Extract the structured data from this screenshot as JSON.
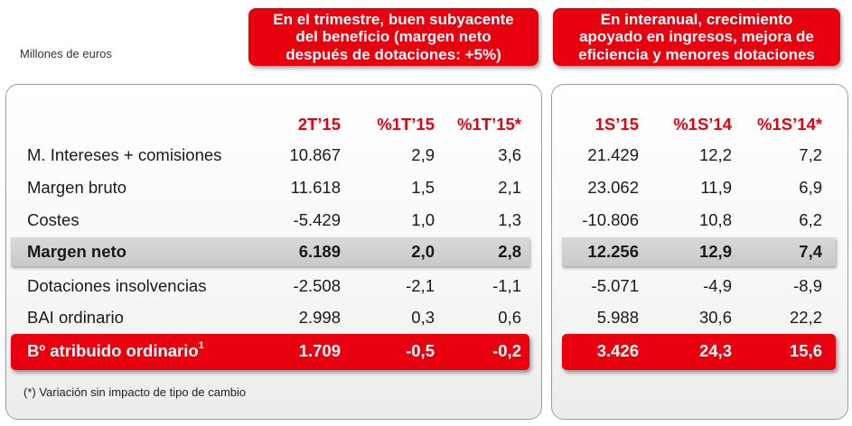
{
  "units": "Millones de euros",
  "callouts": {
    "left": [
      "En el trimestre, buen subyacente",
      "del beneficio (margen neto",
      "después de dotaciones: +5%)"
    ],
    "right": [
      "En interanual, crecimiento",
      "apoyado en ingresos, mejora de",
      "eficiencia y menores dotaciones"
    ]
  },
  "headers": {
    "q": "2T’15",
    "q_vs1": "%1T’15",
    "q_vs2": "%1T’15*",
    "s": "1S’15",
    "s_vs1": "%1S’14",
    "s_vs2": "%1S’14*"
  },
  "rows": [
    {
      "label": "M. Intereses + comisiones",
      "q": "10.867",
      "q_vs1": "2,9",
      "q_vs2": "3,6",
      "s": "21.429",
      "s_vs1": "12,2",
      "s_vs2": "7,2"
    },
    {
      "label": "Margen bruto",
      "q": "11.618",
      "q_vs1": "1,5",
      "q_vs2": "2,1",
      "s": "23.062",
      "s_vs1": "11,9",
      "s_vs2": "6,9"
    },
    {
      "label": "Costes",
      "q": "-5.429",
      "q_vs1": "1,0",
      "q_vs2": "1,3",
      "s": "-10.806",
      "s_vs1": "10,8",
      "s_vs2": "6,2"
    },
    {
      "label": "Margen neto",
      "q": "6.189",
      "q_vs1": "2,0",
      "q_vs2": "2,8",
      "s": "12.256",
      "s_vs1": "12,9",
      "s_vs2": "7,4"
    },
    {
      "label": "Dotaciones insolvencias",
      "q": "-2.508",
      "q_vs1": "-2,1",
      "q_vs2": "-1,1",
      "s": "-5.071",
      "s_vs1": "-4,9",
      "s_vs2": "-8,9"
    },
    {
      "label": "BAI ordinario",
      "q": "2.998",
      "q_vs1": "0,3",
      "q_vs2": "0,6",
      "s": "5.988",
      "s_vs1": "30,6",
      "s_vs2": "22,2"
    },
    {
      "label": "Bº atribuido ordinario",
      "label_sup": "1",
      "q": "1.709",
      "q_vs1": "-0,5",
      "q_vs2": "-0,2",
      "s": "3.426",
      "s_vs1": "24,3",
      "s_vs2": "15,6"
    }
  ],
  "footnote": "(*)  Variación sin impacto de tipo de cambio",
  "colors": {
    "accent": "#e8000f",
    "band": "#d3d3d3"
  }
}
